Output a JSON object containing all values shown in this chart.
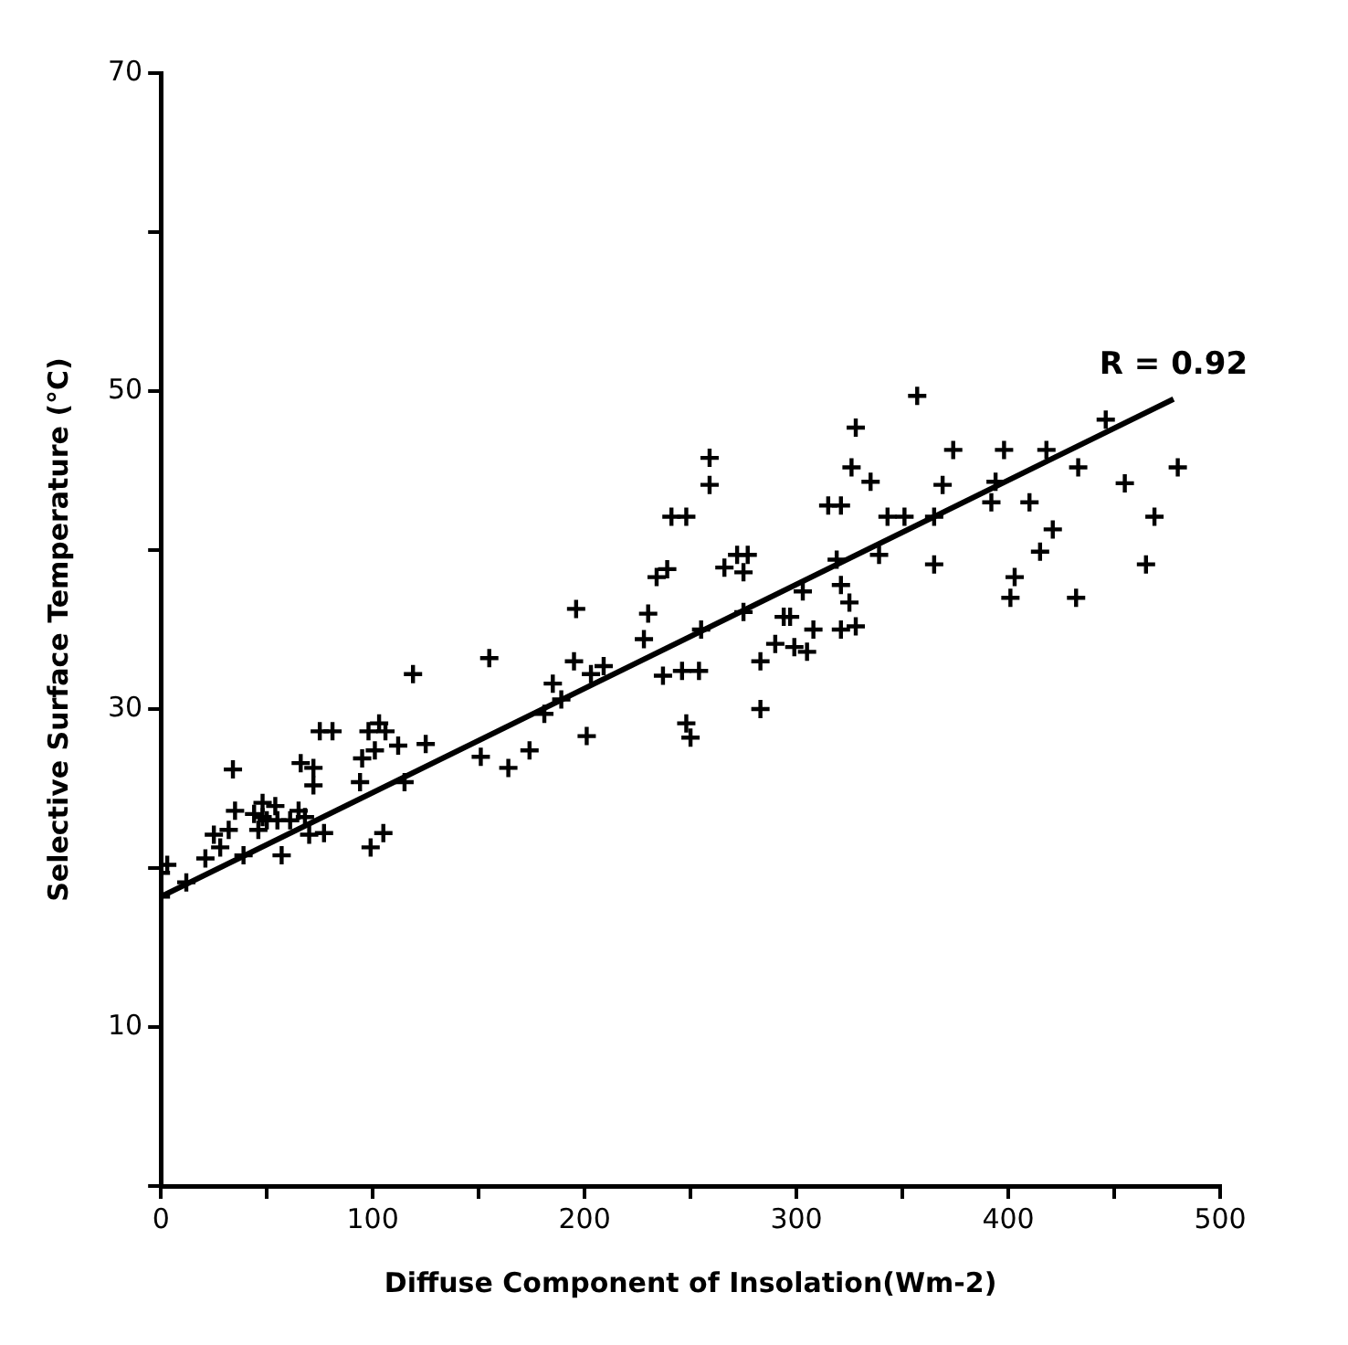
{
  "chart_data": {
    "type": "scatter",
    "xlabel": "Diffuse Component of Insolation(Wm-2)",
    "ylabel": "Selective Surface Temperature (°C)",
    "xlim": [
      0,
      500
    ],
    "xticks": [
      0,
      {
        "value": 50,
        "label": null
      },
      100,
      {
        "value": 150,
        "label": null
      },
      200,
      {
        "value": 250,
        "label": null
      },
      300,
      {
        "value": 350,
        "label": null
      },
      400,
      {
        "value": 450,
        "label": null
      },
      500
    ],
    "ylim": [
      0,
      70
    ],
    "yticks": [
      {
        "value": 0,
        "label": null
      },
      10,
      {
        "value": 20,
        "label": null
      },
      30,
      {
        "value": 40,
        "label": null
      },
      50,
      {
        "value": 60,
        "label": null
      },
      70
    ],
    "grid": false,
    "legend": false,
    "marker": "cross",
    "annotations": [
      {
        "text": "R = 0.92",
        "x": 478,
        "y": 49.5
      }
    ],
    "series": [
      {
        "color": "#000000",
        "x": [
          0,
          3,
          12,
          0,
          21,
          28,
          25,
          32,
          35,
          34,
          39,
          46,
          48,
          54,
          55,
          57,
          48,
          44,
          50,
          61,
          65,
          68,
          70,
          66,
          72,
          75,
          81,
          77,
          72,
          94,
          95,
          98,
          103,
          106,
          101,
          112,
          125,
          115,
          119,
          99,
          105,
          151,
          155,
          164,
          174,
          181,
          185,
          189,
          195,
          196,
          203,
          201,
          209,
          228,
          230,
          234,
          239,
          241,
          248,
          237,
          246,
          254,
          248,
          250,
          255,
          259,
          259,
          266,
          272,
          275,
          277,
          275,
          283,
          283,
          290,
          294,
          297,
          299,
          303,
          305,
          308,
          315,
          321,
          319,
          321,
          325,
          328,
          326,
          335,
          343,
          339,
          357,
          328,
          374,
          398,
          418,
          446,
          480,
          369,
          394,
          455,
          351,
          365,
          392,
          410,
          469,
          421,
          365,
          415,
          465,
          403,
          401,
          432,
          321,
          433
        ],
        "values": [
          19.7,
          20.2,
          19.1,
          18.2,
          20.6,
          21.3,
          22.1,
          22.4,
          23.6,
          26.2,
          20.8,
          22.4,
          24.1,
          23.9,
          23,
          20.8,
          23.2,
          23.4,
          23,
          23,
          23.6,
          23.2,
          22.1,
          26.6,
          26.3,
          28.6,
          28.6,
          22.2,
          25.2,
          25.4,
          26.9,
          28.6,
          29.1,
          28.6,
          27.4,
          27.7,
          27.8,
          25.4,
          32.2,
          21.3,
          22.2,
          27,
          33.2,
          26.3,
          27.4,
          29.7,
          31.6,
          30.6,
          33,
          36.3,
          32.2,
          28.3,
          32.7,
          34.4,
          36,
          38.3,
          38.8,
          42.1,
          42.1,
          32.1,
          32.4,
          32.4,
          29.1,
          28.2,
          35,
          44.1,
          45.8,
          38.9,
          39.7,
          38.6,
          39.7,
          36.1,
          33,
          30,
          34.1,
          35.8,
          35.8,
          33.9,
          37.4,
          33.6,
          35,
          42.8,
          42.8,
          39.4,
          37.8,
          36.7,
          35.2,
          45.2,
          44.3,
          42.1,
          39.7,
          49.7,
          47.7,
          46.3,
          46.3,
          46.3,
          48.2,
          45.2,
          44.1,
          44.3,
          44.2,
          42.1,
          42.1,
          43,
          43,
          42.1,
          41.3,
          39.1,
          39.9,
          39.1,
          38.3,
          37,
          37,
          35,
          45.2
        ]
      },
      {
        "type": "line",
        "color": "#000000",
        "marker": "none",
        "line_style": "solid",
        "x": [
          0,
          478
        ],
        "values": [
          18.2,
          49.5
        ]
      }
    ]
  }
}
